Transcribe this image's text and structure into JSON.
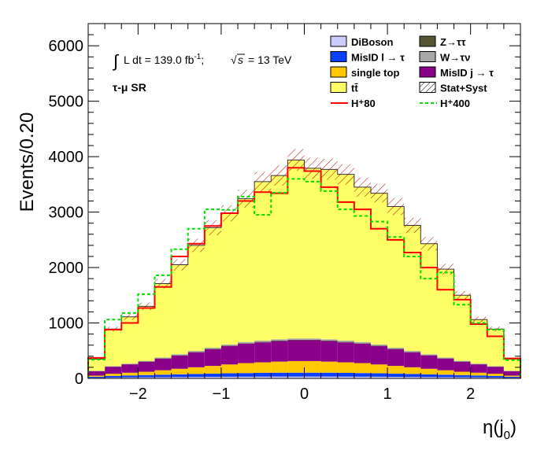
{
  "chart_data": {
    "type": "bar",
    "stacked": true,
    "style": "step-histogram",
    "ylabel": "Events/0.20",
    "xlabel_main": "η(j",
    "xlabel_sub": "0",
    "xlabel_close": ")",
    "xlim": [
      -2.6,
      2.6
    ],
    "ylim": [
      0,
      6400
    ],
    "bin_edges": [
      -2.6,
      -2.4,
      -2.2,
      -2.0,
      -1.8,
      -1.6,
      -1.4,
      -1.2,
      -1.0,
      -0.8,
      -0.6,
      -0.4,
      -0.2,
      0.0,
      0.2,
      0.4,
      0.6,
      0.8,
      1.0,
      1.2,
      1.4,
      1.6,
      1.8,
      2.0,
      2.2,
      2.4,
      2.6
    ],
    "x_ticks": [
      -2,
      -1,
      0,
      1,
      2
    ],
    "x_tick_labels": [
      "−2",
      "−1",
      "0",
      "1",
      "2"
    ],
    "y_ticks": [
      0,
      1000,
      2000,
      3000,
      4000,
      5000,
      6000
    ],
    "y_tick_labels": [
      "0",
      "1000",
      "2000",
      "3000",
      "4000",
      "5000",
      "6000"
    ],
    "series": [
      {
        "name": "DiBoson",
        "color": "#ccccff",
        "values": [
          10,
          15,
          18,
          20,
          22,
          24,
          26,
          28,
          30,
          31,
          32,
          33,
          33,
          33,
          33,
          32,
          31,
          30,
          28,
          26,
          24,
          22,
          20,
          18,
          15,
          10
        ]
      },
      {
        "name": "MisID l → τ",
        "color": "#0b40ff",
        "values": [
          20,
          30,
          35,
          40,
          45,
          50,
          55,
          58,
          62,
          65,
          68,
          70,
          70,
          70,
          70,
          68,
          65,
          62,
          58,
          55,
          50,
          45,
          40,
          35,
          30,
          20
        ]
      },
      {
        "name": "single top",
        "color": "#ffc800",
        "values": [
          20,
          40,
          50,
          60,
          80,
          100,
          120,
          140,
          160,
          180,
          190,
          200,
          210,
          210,
          200,
          190,
          180,
          160,
          140,
          120,
          100,
          80,
          60,
          50,
          40,
          20
        ]
      },
      {
        "name": "MisID j → τ",
        "color": "#8b008b",
        "values": [
          80,
          125,
          150,
          180,
          210,
          240,
          270,
          300,
          330,
          350,
          360,
          370,
          375,
          375,
          370,
          360,
          350,
          330,
          300,
          270,
          240,
          210,
          180,
          150,
          125,
          80
        ]
      },
      {
        "name": "Z→ττ",
        "color": "#555533",
        "values": [
          3,
          4,
          5,
          5,
          6,
          6,
          7,
          7,
          8,
          8,
          8,
          8,
          8,
          8,
          8,
          8,
          8,
          8,
          7,
          7,
          6,
          6,
          5,
          5,
          4,
          3
        ]
      },
      {
        "name": "W→τν",
        "color": "#a8a8a8",
        "values": [
          5,
          8,
          10,
          12,
          14,
          16,
          18,
          20,
          22,
          23,
          24,
          25,
          25,
          25,
          25,
          24,
          23,
          22,
          20,
          18,
          16,
          14,
          12,
          10,
          8,
          5
        ]
      },
      {
        "name": "tt̄",
        "color": "#ffff66",
        "values": [
          212,
          668,
          842,
          983,
          1333,
          1614,
          1904,
          2167,
          2368,
          2583,
          2868,
          2954,
          3219,
          3069,
          3064,
          2998,
          2793,
          2728,
          2547,
          2264,
          1994,
          1593,
          1183,
          792,
          668,
          212
        ]
      }
    ],
    "stat_syst_label": "Stat+Syst",
    "stat_syst_rel": 0.05,
    "signals": [
      {
        "name": "H⁺80",
        "color": "#ff0000",
        "dash": "solid",
        "values": [
          370,
          880,
          1000,
          1270,
          1650,
          2200,
          2430,
          2750,
          2980,
          3200,
          3360,
          3340,
          3800,
          3740,
          3450,
          3180,
          3050,
          2700,
          2500,
          2270,
          2000,
          1600,
          1420,
          980,
          760,
          360
        ]
      },
      {
        "name": "H⁺400",
        "color": "#00dd00",
        "dash": "dash",
        "values": [
          340,
          1060,
          1180,
          1520,
          1860,
          2330,
          2700,
          3050,
          3040,
          3280,
          2950,
          3350,
          3600,
          3550,
          3380,
          3050,
          2930,
          2830,
          2550,
          2200,
          1800,
          1910,
          1330,
          1000,
          880,
          330
        ]
      }
    ],
    "legend_placement": "top-right",
    "legend": [
      {
        "label": "DiBoson",
        "kind": "box",
        "color": "#ccccff"
      },
      {
        "label": "Z→ττ",
        "kind": "box",
        "color": "#555533"
      },
      {
        "label": "MisID l → τ",
        "kind": "box",
        "color": "#0b40ff"
      },
      {
        "label": "W→τν",
        "kind": "box",
        "color": "#a8a8a8"
      },
      {
        "label": "single top",
        "kind": "box",
        "color": "#ffc800"
      },
      {
        "label": "MisID j → τ",
        "kind": "box",
        "color": "#8b008b"
      },
      {
        "label": "tt̄",
        "kind": "box",
        "color": "#ffff66"
      },
      {
        "label": "Stat+Syst",
        "kind": "hatch",
        "color": "#000000"
      },
      {
        "label": "H⁺80",
        "kind": "line",
        "color": "#ff0000"
      },
      {
        "label": "H⁺400",
        "kind": "dash",
        "color": "#00dd00"
      }
    ],
    "annotation_lumi": "L dt = 139.0 fb",
    "annotation_lumi_sup": "-1",
    "annotation_lumi_tail": ";",
    "annotation_energy": "= 13 TeV",
    "annotation_region": "τ-μ SR"
  }
}
